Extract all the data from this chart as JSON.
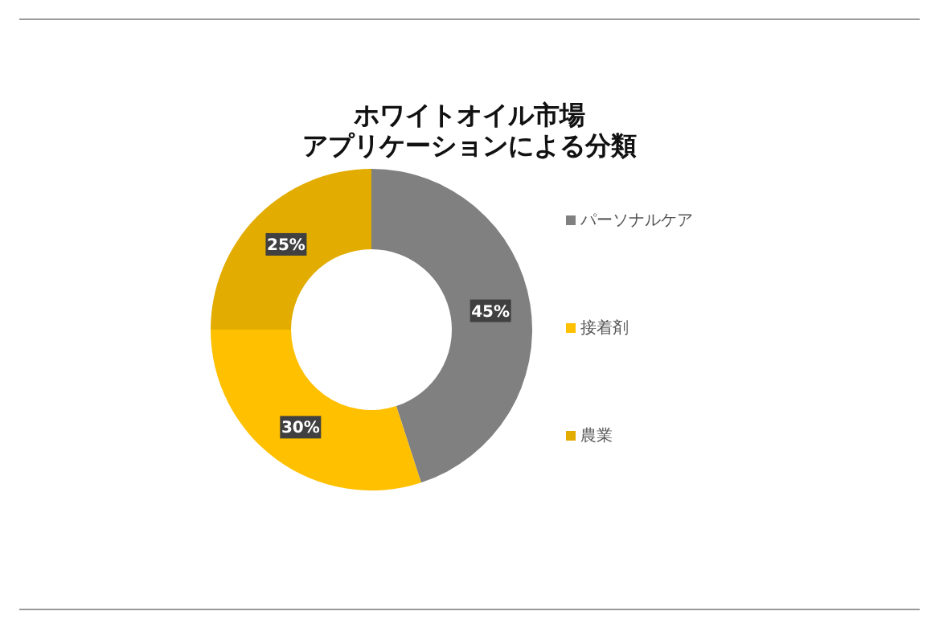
{
  "chart_data": {
    "type": "donut",
    "title": "ホワイトオイル市場",
    "subtitle": "アプリケーションによる分類",
    "categories": [
      "パーソナルケア",
      "接着剤",
      "農業"
    ],
    "values": [
      45,
      30,
      25
    ],
    "colors": [
      "#808080",
      "#ffc000",
      "#e2ac00"
    ],
    "value_labels": [
      "45%",
      "30%",
      "25%"
    ],
    "legend": "right"
  }
}
